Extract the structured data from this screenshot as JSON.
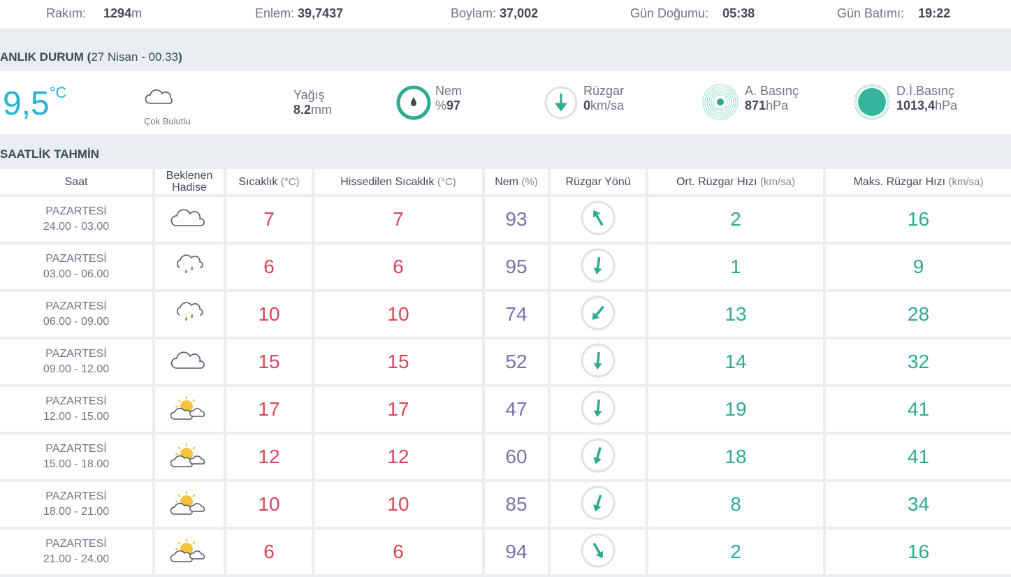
{
  "top": {
    "rakim_label": "Rakım:",
    "rakim": "1294",
    "rakim_unit": "m",
    "enlem_label": "Enlem:",
    "enlem": "39,7437",
    "boylam_label": "Boylam:",
    "boylam": "37,002",
    "dogum_label": "Gün Doğumu:",
    "dogum": "05:38",
    "batim_label": "Gün Batımı:",
    "batim": "19:22"
  },
  "now": {
    "title": "ANLIK DURUM (",
    "date": "27 Nisan - 00.33",
    "close": ")",
    "temp": "9,5",
    "temp_unit": "°C",
    "condition": "Çok Bulutlu",
    "yagis_label": "Yağış",
    "yagis": "8.2",
    "yagis_unit": "mm",
    "nem_label": "Nem",
    "nem_prefix": "%",
    "nem": "97",
    "ruzgar_label": "Rüzgar",
    "ruzgar": "0",
    "ruzgar_unit": "km/sa",
    "abasinc_label": "A. Basınç",
    "abasinc": "871",
    "abasinc_unit": "hPa",
    "dibasinc_label": "D.İ.Basınç",
    "dibasinc": "1013,4",
    "dibasinc_unit": "hPa"
  },
  "hourly": {
    "title": "SAATLİK TAHMİN",
    "headers": {
      "saat": "Saat",
      "hadise": "Beklenen Hadise",
      "sicaklik": "Sıcaklık",
      "sicaklik_unit": "(°C)",
      "hissedilen": "Hissedilen Sıcaklık",
      "hissedilen_unit": "(°C)",
      "nem": "Nem",
      "nem_unit": "(%)",
      "yon": "Rüzgar Yönü",
      "ort": "Ort. Rüzgar Hızı",
      "ort_unit": "(km/sa)",
      "maks": "Maks. Rüzgar Hızı",
      "maks_unit": "(km/sa)"
    },
    "rows": [
      {
        "day": "PAZARTESİ",
        "time": "24.00 - 03.00",
        "icon": "cloud",
        "temp": "7",
        "feels": "7",
        "hum": "93",
        "dir": 330,
        "avg": "2",
        "max": "16"
      },
      {
        "day": "PAZARTESİ",
        "time": "03.00 - 06.00",
        "icon": "rain",
        "temp": "6",
        "feels": "6",
        "hum": "95",
        "dir": 188,
        "avg": "1",
        "max": "9"
      },
      {
        "day": "PAZARTESİ",
        "time": "06.00 - 09.00",
        "icon": "rain",
        "temp": "10",
        "feels": "10",
        "hum": "74",
        "dir": 220,
        "avg": "13",
        "max": "28"
      },
      {
        "day": "PAZARTESİ",
        "time": "09.00 - 12.00",
        "icon": "cloud",
        "temp": "15",
        "feels": "15",
        "hum": "52",
        "dir": 185,
        "avg": "14",
        "max": "32"
      },
      {
        "day": "PAZARTESİ",
        "time": "12.00 - 15.00",
        "icon": "partly",
        "temp": "17",
        "feels": "17",
        "hum": "47",
        "dir": 186,
        "avg": "19",
        "max": "41"
      },
      {
        "day": "PAZARTESİ",
        "time": "15.00 - 18.00",
        "icon": "partly",
        "temp": "12",
        "feels": "12",
        "hum": "60",
        "dir": 195,
        "avg": "18",
        "max": "41"
      },
      {
        "day": "PAZARTESİ",
        "time": "18.00 - 21.00",
        "icon": "partly",
        "temp": "10",
        "feels": "10",
        "hum": "85",
        "dir": 198,
        "avg": "8",
        "max": "34"
      },
      {
        "day": "PAZARTESİ",
        "time": "21.00 - 24.00",
        "icon": "partly",
        "temp": "6",
        "feels": "6",
        "hum": "94",
        "dir": 150,
        "avg": "2",
        "max": "16"
      }
    ]
  },
  "colors": {
    "accent": "#2eaa8f",
    "temp": "#d9465a",
    "hum": "#7d6fae",
    "now_temp": "#29b3cc"
  }
}
